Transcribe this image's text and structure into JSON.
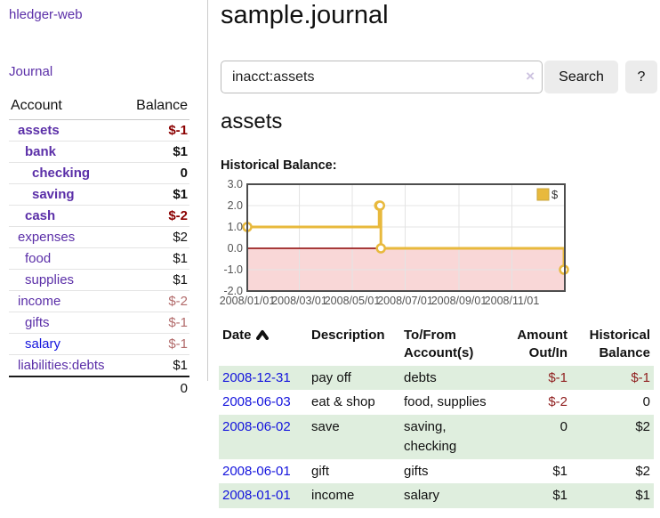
{
  "app_title": "hledger-web",
  "sidebar": {
    "journal_link": "Journal",
    "accounts": {
      "header_account": "Account",
      "header_balance": "Balance",
      "rows": [
        {
          "name": "assets",
          "depth": 1,
          "bold": true,
          "balance": "$-1",
          "neg": "strong",
          "link_style": "purple"
        },
        {
          "name": "bank",
          "depth": 2,
          "bold": true,
          "balance": "$1",
          "neg": "none",
          "link_style": "purple"
        },
        {
          "name": "checking",
          "depth": 3,
          "bold": true,
          "balance": "0",
          "neg": "none",
          "link_style": "purple"
        },
        {
          "name": "saving",
          "depth": 3,
          "bold": true,
          "balance": "$1",
          "neg": "none",
          "link_style": "purple"
        },
        {
          "name": "cash",
          "depth": 2,
          "bold": true,
          "balance": "$-2",
          "neg": "strong",
          "link_style": "purple"
        },
        {
          "name": "expenses",
          "depth": 1,
          "bold": false,
          "balance": "$2",
          "neg": "none",
          "link_style": "purple"
        },
        {
          "name": "food",
          "depth": 2,
          "bold": false,
          "balance": "$1",
          "neg": "none",
          "link_style": "purple"
        },
        {
          "name": "supplies",
          "depth": 2,
          "bold": false,
          "balance": "$1",
          "neg": "none",
          "link_style": "purple"
        },
        {
          "name": "income",
          "depth": 1,
          "bold": false,
          "balance": "$-2",
          "neg": "soft",
          "link_style": "purple"
        },
        {
          "name": "gifts",
          "depth": 2,
          "bold": false,
          "balance": "$-1",
          "neg": "soft",
          "link_style": "purple"
        },
        {
          "name": "salary",
          "depth": 2,
          "bold": false,
          "balance": "$-1",
          "neg": "soft",
          "link_style": "blue"
        },
        {
          "name": "liabilities:debts",
          "depth": 1,
          "bold": false,
          "balance": "$1",
          "neg": "none",
          "link_style": "purple"
        }
      ],
      "total": "0"
    }
  },
  "main": {
    "title": "sample.journal",
    "search": {
      "value": "inacct:assets",
      "clear_icon": "×",
      "search_button": "Search",
      "help_button": "?"
    },
    "account_heading": "assets",
    "chart_title": "Historical Balance:"
  },
  "chart_data": {
    "type": "line",
    "step": true,
    "title": "Historical Balance",
    "series": [
      {
        "name": "$",
        "color": "#e8b93d",
        "points": [
          [
            "2008-01-01",
            1
          ],
          [
            "2008-06-01",
            2
          ],
          [
            "2008-06-02",
            2
          ],
          [
            "2008-06-03",
            0
          ],
          [
            "2008-12-31",
            -1
          ]
        ]
      }
    ],
    "x_range": [
      "2008-01-01",
      "2009-01-01"
    ],
    "ylim": [
      -2.0,
      3.0
    ],
    "yticks": [
      "3.0",
      "2.0",
      "1.0",
      "0.0",
      "-1.0",
      "-2.0"
    ],
    "xticks": [
      "2008/01/01",
      "2008/03/01",
      "2008/05/01",
      "2008/07/01",
      "2008/09/01",
      "2008/11/01"
    ],
    "grid": true,
    "legend": {
      "label": "$",
      "position": "top-right"
    },
    "negative_region_fill": "#f9d7d7",
    "zero_line_color": "#8b0000",
    "tick_label_color": "#545454",
    "grid_color": "#e4e4e4",
    "border_color": "#4d4d4d"
  },
  "transactions": {
    "headers": [
      "Date",
      "Description",
      "To/From Account(s)",
      "Amount Out/In",
      "Historical Balance"
    ],
    "sort_icon": "caret-up",
    "rows": [
      {
        "date": "2008-12-31",
        "description": "pay off",
        "accounts": "debts",
        "amount": "$-1",
        "amount_neg": true,
        "balance": "$-1",
        "balance_neg": true
      },
      {
        "date": "2008-06-03",
        "description": "eat & shop",
        "accounts": "food, supplies",
        "amount": "$-2",
        "amount_neg": true,
        "balance": "0",
        "balance_neg": false
      },
      {
        "date": "2008-06-02",
        "description": "save",
        "accounts": "saving, checking",
        "amount": "0",
        "amount_neg": false,
        "balance": "$2",
        "balance_neg": false
      },
      {
        "date": "2008-06-01",
        "description": "gift",
        "accounts": "gifts",
        "amount": "$1",
        "amount_neg": false,
        "balance": "$2",
        "balance_neg": false
      },
      {
        "date": "2008-01-01",
        "description": "income",
        "accounts": "salary",
        "amount": "$1",
        "amount_neg": false,
        "balance": "$1",
        "balance_neg": false
      }
    ]
  },
  "colors": {
    "link_purple": "#5b2fa8",
    "link_blue": "#1414dd",
    "negative_strong": "#8b0000",
    "negative_soft": "#b26b6b",
    "negative_table": "#902020",
    "row_green": "#dfeede",
    "series_gold": "#e8b93d"
  }
}
